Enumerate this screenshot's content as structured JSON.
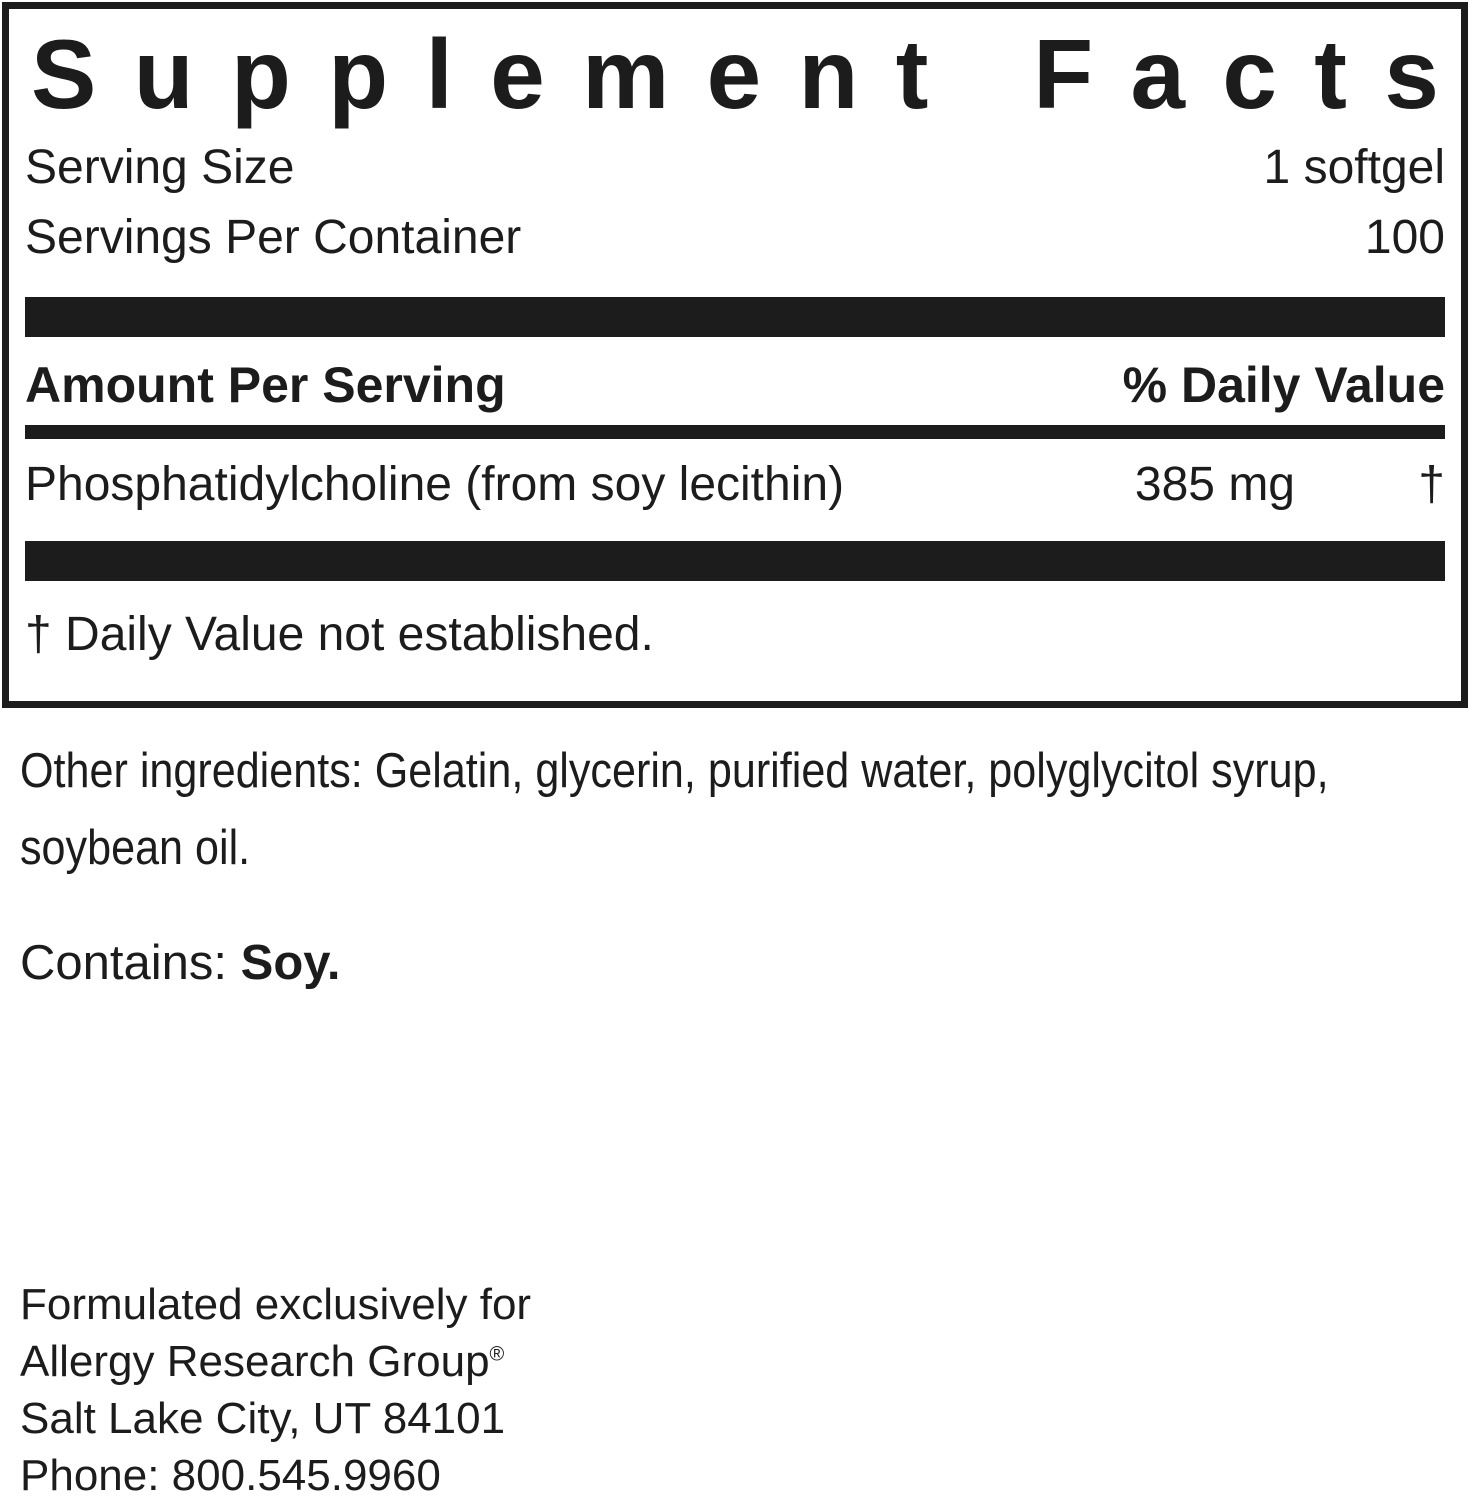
{
  "colors": {
    "ink": "#1c1c1c",
    "background": "#ffffff"
  },
  "panel": {
    "title": "Supplement Facts",
    "serving_size_label": "Serving Size",
    "serving_size_value": "1 softgel",
    "servings_per_container_label": "Servings Per Container",
    "servings_per_container_value": "100",
    "amount_header": "Amount Per Serving",
    "daily_value_header": "% Daily Value",
    "rows": [
      {
        "name": "Phosphatidylcholine (from soy lecithin)",
        "amount": "385 mg",
        "daily_value": "†"
      }
    ],
    "footnote": "† Daily Value not established."
  },
  "other_ingredients": "Other ingredients: Gelatin, glycerin, purified water, polyglycitol syrup, soybean oil.",
  "contains": {
    "label": "Contains:",
    "value": "Soy."
  },
  "footer": {
    "line1": "Formulated exclusively for",
    "brand": "Allergy Research Group",
    "reg_mark": "®",
    "line3": "Salt Lake City, UT 84101",
    "line4": "Phone: 800.545.9960"
  }
}
